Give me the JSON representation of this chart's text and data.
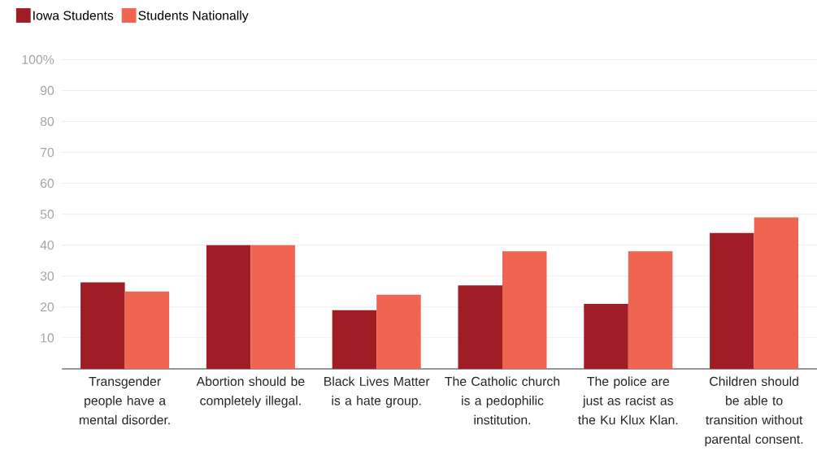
{
  "chart_data": {
    "type": "bar",
    "categories": [
      "Transgender people have a mental disorder.",
      "Abortion should be completely illegal.",
      "Black Lives Matter is a hate group.",
      "The Catholic church is a pedophilic institution.",
      "The police are just as racist as the Ku Klux Klan.",
      "Children should be able to transition without parental consent."
    ],
    "series": [
      {
        "name": "Iowa Students",
        "color": "#a01d25",
        "values": [
          28,
          40,
          19,
          27,
          21,
          44
        ]
      },
      {
        "name": "Students Nationally",
        "color": "#ef6551",
        "values": [
          25,
          40,
          24,
          38,
          38,
          49
        ]
      }
    ],
    "ylim": [
      0,
      100
    ],
    "yticks": [
      10,
      20,
      30,
      40,
      50,
      60,
      70,
      80,
      90,
      {
        "value": 100,
        "label": "100%"
      }
    ],
    "grid": "y",
    "legend": "top left"
  }
}
